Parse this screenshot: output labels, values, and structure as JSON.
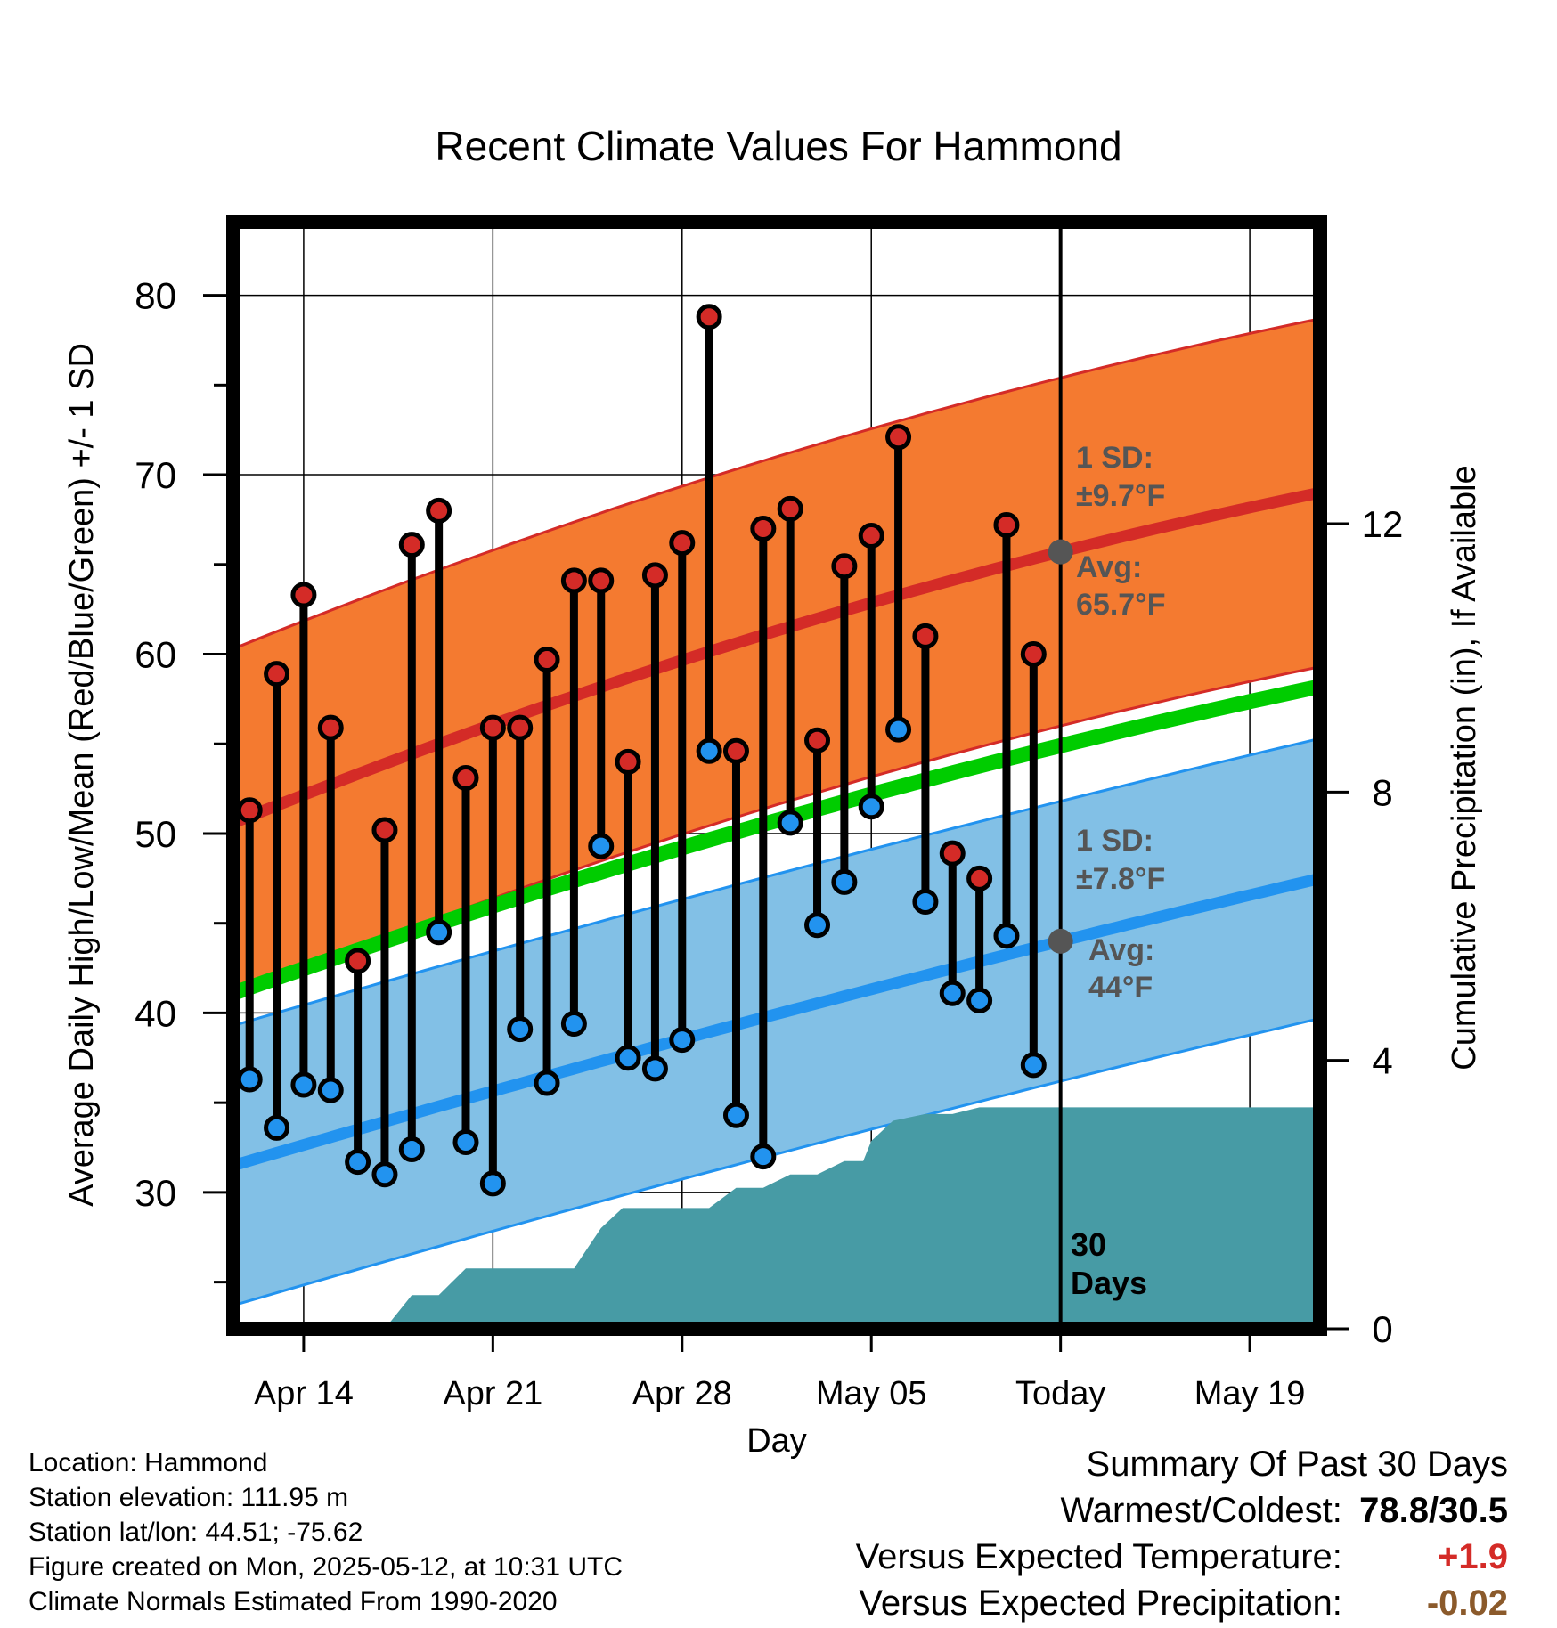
{
  "title": "Recent Climate Values For Hammond",
  "chart_data": {
    "type": "line",
    "title": "Recent Climate Values For Hammond",
    "xlabel": "Day",
    "ylabel_left": "Average Daily High/Low/Mean (Red/Blue/Green) +/- 1 SD",
    "ylabel_right": "Cumulative Precipitation (in), If Available",
    "x_ticks": [
      "Apr 14",
      "Apr 21",
      "Apr 28",
      "May 05",
      "Today",
      "May 19"
    ],
    "x_tick_days": [
      0,
      7,
      14,
      21,
      28,
      35
    ],
    "xlim_days": [
      -2.6,
      37.6
    ],
    "y_left_ticks": [
      30,
      40,
      50,
      60,
      70,
      80
    ],
    "y_left_range": [
      22.4,
      84.1
    ],
    "y_right_ticks": [
      0,
      4,
      8,
      12
    ],
    "y_right_range": [
      0,
      16.5
    ],
    "grid": true,
    "normals": {
      "high_avg": {
        "start": 50.6,
        "today": 65.7,
        "end": 69.0
      },
      "high_sd": 9.7,
      "low_avg": {
        "start": 31.5,
        "today": 44.0,
        "end": 47.5
      },
      "low_sd": 7.8,
      "mean_avg": {
        "start": 41.1,
        "today": 54.9,
        "end": 58.2
      }
    },
    "today_day": 28,
    "days": [
      -2,
      -1,
      0,
      1,
      2,
      3,
      4,
      5,
      6,
      7,
      8,
      9,
      10,
      11,
      12,
      13,
      14,
      15,
      16,
      17,
      18,
      19,
      20,
      21,
      22,
      23,
      24,
      25,
      26,
      27
    ],
    "observed_high": [
      51.3,
      58.9,
      63.3,
      55.9,
      42.9,
      50.2,
      66.1,
      68.0,
      53.1,
      55.9,
      55.9,
      59.7,
      64.1,
      64.1,
      54.0,
      64.4,
      66.2,
      78.8,
      54.6,
      67.0,
      68.1,
      55.2,
      64.9,
      66.6,
      72.1,
      61.0,
      48.9,
      47.5,
      67.2,
      60.0
    ],
    "observed_low": [
      36.3,
      33.6,
      36.0,
      35.7,
      31.7,
      31.0,
      32.4,
      44.5,
      32.8,
      30.5,
      39.1,
      36.1,
      39.4,
      49.3,
      37.5,
      36.9,
      38.5,
      54.6,
      34.3,
      32.0,
      50.6,
      44.9,
      47.3,
      51.5,
      55.8,
      46.2,
      41.1,
      40.7,
      44.3,
      37.1
    ],
    "precip_cumulative": {
      "days": [
        3.0,
        4.0,
        5.0,
        6.0,
        7.0,
        8.0,
        9.0,
        10.0,
        11.0,
        11.8,
        12.5,
        13.0,
        14.0,
        15.0,
        16.0,
        17.0,
        18.0,
        19.0,
        20.0,
        20.7,
        21.0,
        21.8,
        23.0,
        24.0,
        25.0,
        26.0,
        27.0,
        37.6
      ],
      "values": [
        0.0,
        0.5,
        0.5,
        0.9,
        0.9,
        0.9,
        0.9,
        0.9,
        1.5,
        1.8,
        1.8,
        1.8,
        1.8,
        1.8,
        2.1,
        2.1,
        2.3,
        2.3,
        2.5,
        2.5,
        2.8,
        3.1,
        3.2,
        3.2,
        3.3,
        3.3,
        3.3,
        3.3
      ]
    }
  },
  "annotations": {
    "high_sd_label": "1 SD:",
    "high_sd_value": "±9.7°F",
    "high_avg_label": "Avg:",
    "high_avg_value": "65.7°F",
    "low_sd_label": "1 SD:",
    "low_sd_value": "±7.8°F",
    "low_avg_label": "Avg:",
    "low_avg_value": "44°F",
    "window_label_1": "30",
    "window_label_2": "Days"
  },
  "colors": {
    "high_band": "#f47a30",
    "high_line": "#d42b27",
    "low_band": "#82c0e6",
    "low_line": "#2293ef",
    "mean_line": "#00cc00",
    "precip_fill": "#479ba5",
    "annotation_text": "#555555",
    "positive_anomaly": "#d42b27",
    "negative_anomaly": "#8b5a2b"
  },
  "footer": {
    "location": "Location: Hammond",
    "elevation": "Station elevation: 111.95 m",
    "latlon": "Station lat/lon: 44.51; -75.62",
    "created": "Figure created on Mon, 2025-05-12, at 10:31 UTC",
    "normals_period": "Climate Normals Estimated From 1990-2020"
  },
  "summary": {
    "heading": "Summary Of Past 30 Days",
    "warm_cold_label": "Warmest/Coldest:",
    "warm_cold_value": "78.8/30.5",
    "temp_label": "Versus Expected Temperature:",
    "temp_value": "+1.9",
    "precip_label": "Versus Expected Precipitation:",
    "precip_value": "-0.02"
  }
}
